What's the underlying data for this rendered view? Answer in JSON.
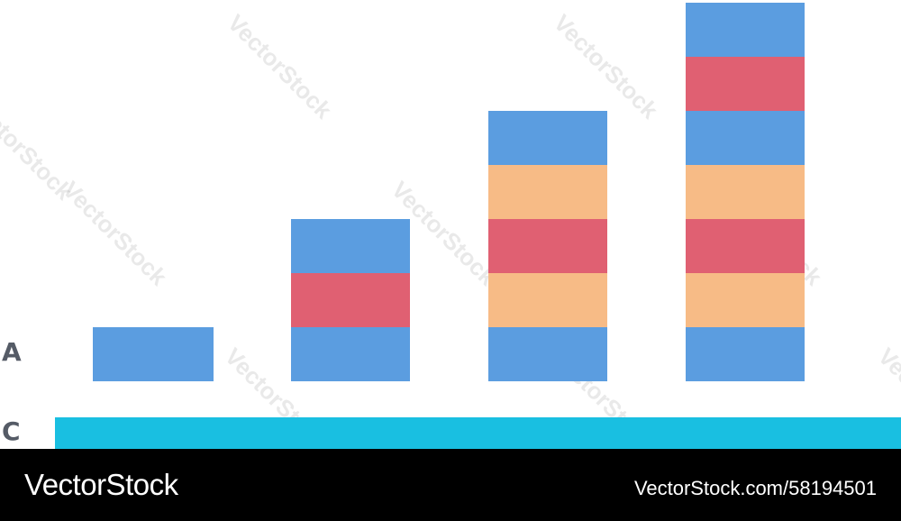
{
  "letters": {
    "a": "A",
    "c": "C"
  },
  "colors": {
    "blue": "#5b9de0",
    "red": "#e06072",
    "orange": "#f7bb86",
    "cyan": "#19bfe1"
  },
  "stacks": [
    {
      "blocks": [
        "blue"
      ]
    },
    {
      "blocks": [
        "blue",
        "red",
        "blue"
      ]
    },
    {
      "blocks": [
        "blue",
        "orange",
        "red",
        "orange",
        "blue"
      ]
    },
    {
      "blocks": [
        "blue",
        "orange",
        "red",
        "orange",
        "blue",
        "red",
        "blue"
      ]
    }
  ],
  "watermark": {
    "text": "VectorStock"
  },
  "footer": {
    "brand": "VectorStock",
    "image_id": "VectorStock.com/58194501"
  }
}
